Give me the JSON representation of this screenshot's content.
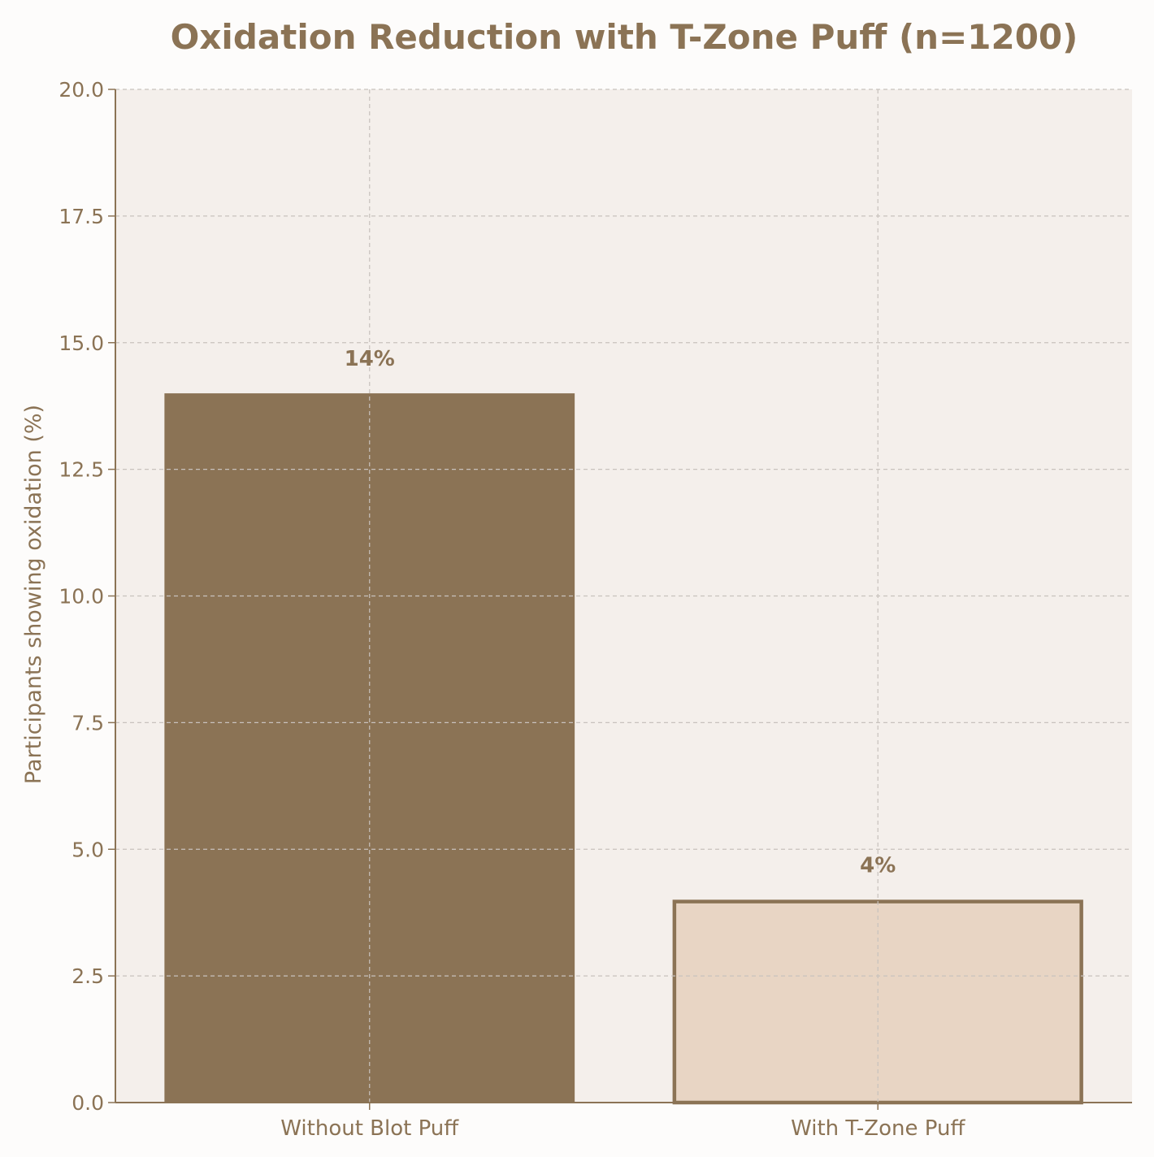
{
  "chart_data": {
    "type": "bar",
    "title": "Oxidation Reduction with T-Zone Puff (n=1200)",
    "xlabel": "",
    "ylabel": "Participants showing oxidation (%)",
    "categories": [
      "Without Blot Puff",
      "With T-Zone Puff"
    ],
    "values": [
      14,
      4
    ],
    "value_labels": [
      "14%",
      "4%"
    ],
    "ylim": [
      0,
      20
    ],
    "yticks": [
      "0.0",
      "2.5",
      "5.0",
      "7.5",
      "10.0",
      "12.5",
      "15.0",
      "17.5",
      "20.0"
    ],
    "grid": true,
    "legend": "none",
    "colors": {
      "text": "#8b7355",
      "axis": "#8b7355",
      "plot_background": "#f4efeb",
      "page_background": "#fdfcfb",
      "grid": "#c8c2bd",
      "bar_fills": [
        "#8b7355",
        "#e8d5c4"
      ],
      "bar_edge": "#8b7355"
    }
  }
}
